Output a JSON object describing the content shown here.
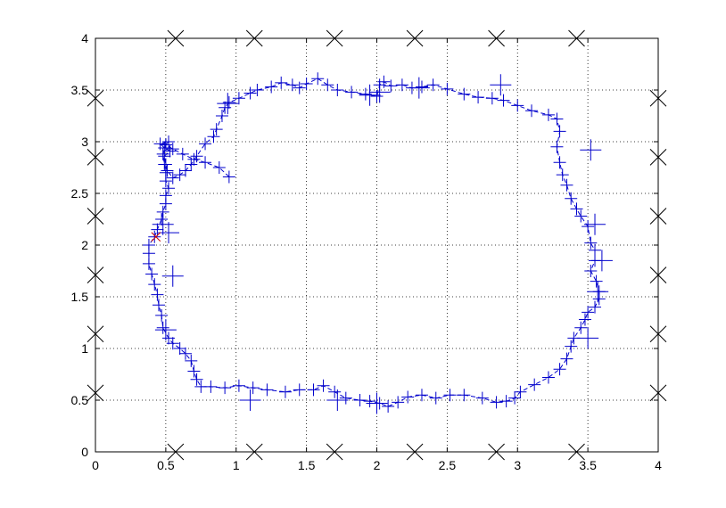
{
  "chart_data": {
    "type": "scatter",
    "title": "",
    "xlabel": "",
    "ylabel": "",
    "xlim": [
      0,
      4
    ],
    "ylim": [
      0,
      4
    ],
    "grid": true,
    "grid_style": "dotted",
    "x_ticks": [
      "0",
      "0.5",
      "1",
      "1.5",
      "2",
      "2.5",
      "3",
      "3.5",
      "4"
    ],
    "y_ticks": [
      "0",
      "0.5",
      "1",
      "1.5",
      "2",
      "2.5",
      "3",
      "3.5",
      "4"
    ],
    "colors": {
      "path": "#0000cc",
      "landmark": "#000000",
      "start": "#cc0000"
    },
    "series": [
      {
        "style": "dashed line with plus markers",
        "points": [
          [
            0.95,
            2.66
          ],
          [
            0.88,
            2.75
          ],
          [
            0.78,
            2.8
          ],
          [
            0.7,
            2.83
          ],
          [
            0.62,
            2.88
          ],
          [
            0.55,
            2.93
          ],
          [
            0.5,
            2.97
          ],
          [
            0.52,
            3.0
          ],
          [
            0.46,
            2.98
          ],
          [
            0.49,
            2.94
          ],
          [
            0.53,
            2.91
          ],
          [
            0.49,
            2.86
          ],
          [
            0.5,
            2.78
          ],
          [
            0.51,
            2.72
          ],
          [
            0.55,
            2.65
          ],
          [
            0.6,
            2.68
          ],
          [
            0.64,
            2.72
          ],
          [
            0.68,
            2.78
          ],
          [
            0.72,
            2.86
          ],
          [
            0.78,
            2.98
          ],
          [
            0.84,
            3.05
          ],
          [
            0.86,
            3.12
          ],
          [
            0.9,
            3.25
          ],
          [
            0.92,
            3.33
          ],
          [
            0.95,
            3.38
          ],
          [
            1.02,
            3.42
          ],
          [
            1.1,
            3.47
          ],
          [
            1.15,
            3.5
          ],
          [
            1.25,
            3.53
          ],
          [
            1.32,
            3.57
          ],
          [
            1.4,
            3.55
          ],
          [
            1.45,
            3.52
          ],
          [
            1.5,
            3.56
          ],
          [
            1.58,
            3.61
          ],
          [
            1.65,
            3.55
          ],
          [
            1.72,
            3.5
          ],
          [
            1.82,
            3.48
          ],
          [
            1.92,
            3.46
          ],
          [
            2.0,
            3.44
          ],
          [
            2.02,
            3.55
          ],
          [
            2.05,
            3.58
          ],
          [
            2.1,
            3.54
          ],
          [
            2.18,
            3.55
          ],
          [
            2.25,
            3.52
          ],
          [
            2.32,
            3.53
          ],
          [
            2.4,
            3.55
          ],
          [
            2.5,
            3.51
          ],
          [
            2.62,
            3.46
          ],
          [
            2.72,
            3.43
          ],
          [
            2.82,
            3.42
          ],
          [
            2.9,
            3.4
          ],
          [
            3.0,
            3.35
          ],
          [
            3.1,
            3.3
          ],
          [
            3.22,
            3.26
          ],
          [
            3.28,
            3.22
          ],
          [
            3.3,
            3.1
          ],
          [
            3.28,
            2.95
          ],
          [
            3.3,
            2.8
          ],
          [
            3.32,
            2.68
          ],
          [
            3.35,
            2.58
          ],
          [
            3.38,
            2.45
          ],
          [
            3.42,
            2.35
          ],
          [
            3.45,
            2.28
          ],
          [
            3.5,
            2.18
          ],
          [
            3.52,
            2.02
          ],
          [
            3.55,
            1.95
          ],
          [
            3.55,
            1.85
          ],
          [
            3.52,
            1.75
          ],
          [
            3.56,
            1.65
          ],
          [
            3.58,
            1.55
          ],
          [
            3.58,
            1.48
          ],
          [
            3.55,
            1.4
          ],
          [
            3.5,
            1.35
          ],
          [
            3.48,
            1.28
          ],
          [
            3.45,
            1.2
          ],
          [
            3.4,
            1.1
          ],
          [
            3.38,
            1.02
          ],
          [
            3.35,
            0.9
          ],
          [
            3.3,
            0.8
          ],
          [
            3.22,
            0.72
          ],
          [
            3.12,
            0.65
          ],
          [
            3.02,
            0.58
          ],
          [
            2.98,
            0.52
          ],
          [
            2.92,
            0.49
          ],
          [
            2.85,
            0.48
          ],
          [
            2.75,
            0.52
          ],
          [
            2.62,
            0.55
          ],
          [
            2.52,
            0.55
          ],
          [
            2.42,
            0.52
          ],
          [
            2.32,
            0.55
          ],
          [
            2.22,
            0.53
          ],
          [
            2.15,
            0.48
          ],
          [
            2.08,
            0.44
          ],
          [
            2.02,
            0.47
          ],
          [
            1.95,
            0.49
          ],
          [
            1.88,
            0.5
          ],
          [
            1.78,
            0.52
          ],
          [
            1.7,
            0.58
          ],
          [
            1.62,
            0.64
          ],
          [
            1.55,
            0.6
          ],
          [
            1.45,
            0.6
          ],
          [
            1.35,
            0.58
          ],
          [
            1.22,
            0.6
          ],
          [
            1.12,
            0.62
          ],
          [
            1.02,
            0.64
          ],
          [
            0.92,
            0.62
          ],
          [
            0.82,
            0.63
          ],
          [
            0.75,
            0.63
          ],
          [
            0.72,
            0.7
          ],
          [
            0.7,
            0.78
          ],
          [
            0.68,
            0.88
          ],
          [
            0.64,
            0.95
          ],
          [
            0.6,
            1.0
          ],
          [
            0.55,
            1.05
          ],
          [
            0.52,
            1.1
          ],
          [
            0.48,
            1.2
          ],
          [
            0.47,
            1.32
          ],
          [
            0.45,
            1.42
          ],
          [
            0.44,
            1.52
          ],
          [
            0.42,
            1.62
          ],
          [
            0.4,
            1.72
          ],
          [
            0.38,
            1.82
          ],
          [
            0.38,
            1.92
          ],
          [
            0.38,
            2.0
          ],
          [
            0.42,
            2.08
          ],
          [
            0.44,
            2.15
          ],
          [
            0.47,
            2.25
          ],
          [
            0.48,
            2.32
          ],
          [
            0.5,
            2.4
          ],
          [
            0.5,
            2.48
          ],
          [
            0.52,
            2.55
          ],
          [
            0.5,
            2.62
          ],
          [
            0.5,
            2.7
          ],
          [
            0.49,
            2.78
          ],
          [
            0.48,
            2.88
          ],
          [
            0.5,
            2.97
          ]
        ],
        "outlier_points": [
          [
            0.48,
            2.2
          ],
          [
            0.5,
            1.18
          ],
          [
            0.55,
            1.7
          ],
          [
            0.52,
            2.12
          ],
          [
            1.1,
            0.5
          ],
          [
            1.72,
            0.5
          ],
          [
            2.0,
            0.47
          ],
          [
            2.3,
            3.52
          ],
          [
            2.88,
            3.55
          ],
          [
            1.95,
            3.45
          ],
          [
            2.02,
            3.48
          ],
          [
            3.52,
            2.92
          ],
          [
            3.55,
            2.2
          ],
          [
            3.5,
            1.1
          ],
          [
            3.57,
            1.55
          ],
          [
            3.6,
            1.85
          ],
          [
            0.94,
            3.37
          ]
        ]
      },
      {
        "style": "landmarks (x markers)",
        "points": [
          [
            0.57,
            4.0
          ],
          [
            1.13,
            4.0
          ],
          [
            1.7,
            4.0
          ],
          [
            2.27,
            4.0
          ],
          [
            2.85,
            4.0
          ],
          [
            3.42,
            4.0
          ],
          [
            0.57,
            0.0
          ],
          [
            1.13,
            0.0
          ],
          [
            1.7,
            0.0
          ],
          [
            2.27,
            0.0
          ],
          [
            2.85,
            0.0
          ],
          [
            3.42,
            0.0
          ],
          [
            0.0,
            0.57
          ],
          [
            0.0,
            1.14
          ],
          [
            0.0,
            1.71
          ],
          [
            0.0,
            2.28
          ],
          [
            0.0,
            2.85
          ],
          [
            0.0,
            3.42
          ],
          [
            4.0,
            0.57
          ],
          [
            4.0,
            1.14
          ],
          [
            4.0,
            1.71
          ],
          [
            4.0,
            2.28
          ],
          [
            4.0,
            2.85
          ],
          [
            4.0,
            3.42
          ]
        ]
      }
    ],
    "start_point": [
      0.43,
      2.08
    ]
  }
}
